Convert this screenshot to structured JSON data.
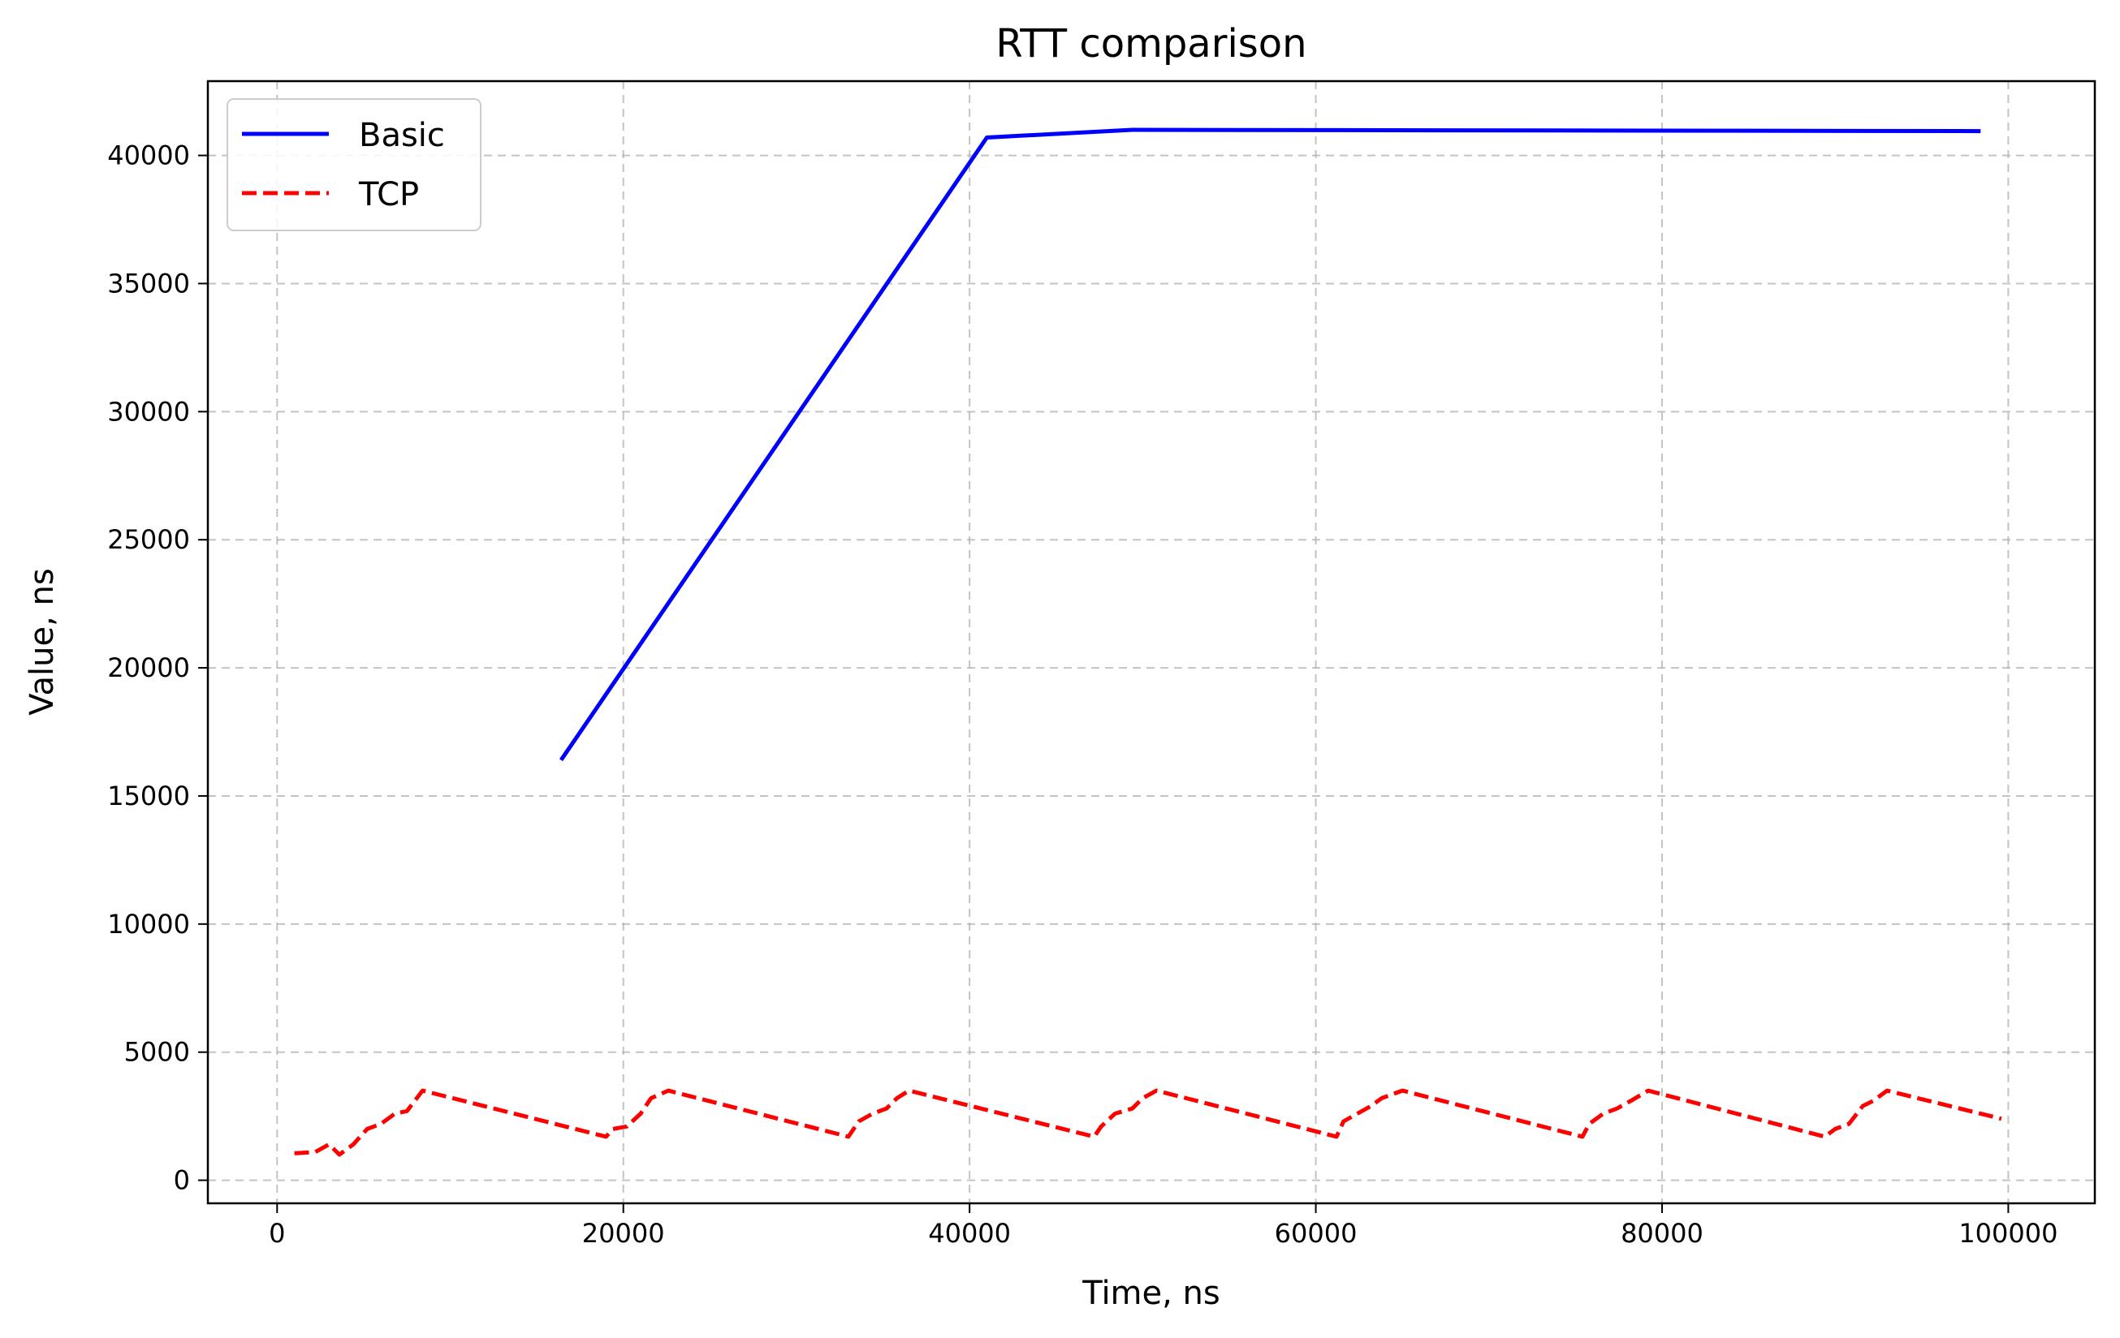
{
  "chart_data": {
    "type": "line",
    "title": "RTT comparison",
    "xlabel": "Time, ns",
    "ylabel": "Value, ns",
    "xlim": [
      -4000,
      105000
    ],
    "ylim": [
      -900,
      42900
    ],
    "xticks": [
      0,
      20000,
      40000,
      60000,
      80000,
      100000
    ],
    "yticks": [
      0,
      5000,
      10000,
      15000,
      20000,
      25000,
      30000,
      35000,
      40000
    ],
    "grid": true,
    "legend": "top-left",
    "series": [
      {
        "name": "Basic",
        "color": "#0000ff",
        "style": "solid",
        "x": [
          16400,
          41000,
          49400,
          98400
        ],
        "y": [
          16400,
          40700,
          41000,
          40950
        ]
      },
      {
        "name": "TCP",
        "color": "#ff0000",
        "style": "dashed",
        "x": [
          1000,
          2200,
          3000,
          3600,
          4400,
          5200,
          6000,
          6800,
          7500,
          8400,
          19000,
          19400,
          20200,
          21000,
          21600,
          22600,
          33000,
          33600,
          34400,
          35200,
          35800,
          36500,
          47200,
          47600,
          48400,
          49400,
          50000,
          50800,
          61200,
          61600,
          62400,
          63200,
          63800,
          65000,
          75400,
          75800,
          76600,
          77400,
          78200,
          79200,
          89400,
          90000,
          90800,
          91600,
          92200,
          93000,
          99600
        ],
        "y": [
          1050,
          1100,
          1400,
          1000,
          1400,
          2000,
          2200,
          2600,
          2700,
          3500,
          1700,
          2000,
          2100,
          2600,
          3200,
          3500,
          1700,
          2300,
          2600,
          2800,
          3200,
          3500,
          1700,
          2100,
          2600,
          2800,
          3200,
          3500,
          1700,
          2300,
          2600,
          2900,
          3200,
          3500,
          1700,
          2200,
          2600,
          2800,
          3100,
          3500,
          1700,
          2000,
          2200,
          2900,
          3100,
          3500,
          2400
        ]
      }
    ]
  }
}
